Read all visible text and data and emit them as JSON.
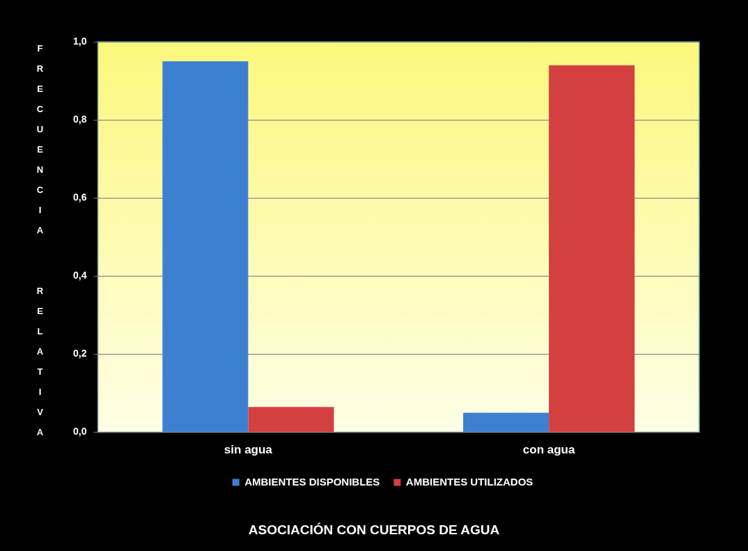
{
  "chart_data": {
    "type": "bar",
    "xlabel": "ASOCIACIÓN CON CUERPOS DE AGUA",
    "ylabel": "FRECUENCIA  RELATIVA",
    "categories": [
      "sin agua",
      "con agua"
    ],
    "series": [
      {
        "name": "AMBIENTES DISPONIBLES",
        "color": "#3d80d2",
        "values": [
          0.95,
          0.05
        ]
      },
      {
        "name": "AMBIENTES UTILIZADOS",
        "color": "#d43f3f",
        "values": [
          0.065,
          0.94
        ]
      }
    ],
    "ylim": [
      0,
      1
    ],
    "yticks": [
      {
        "value": 0,
        "label": "0,0"
      },
      {
        "value": 0.2,
        "label": "0,2"
      },
      {
        "value": 0.4,
        "label": "0,4"
      },
      {
        "value": 0.6,
        "label": "0,6"
      },
      {
        "value": 0.8,
        "label": "0,8"
      },
      {
        "value": 1,
        "label": "1,0"
      }
    ],
    "grid": "y",
    "legend": "bottom"
  }
}
